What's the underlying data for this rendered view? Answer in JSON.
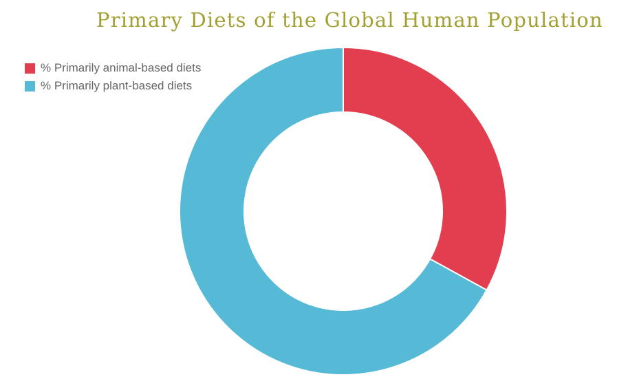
{
  "chart_data": {
    "type": "pie",
    "variant": "donut",
    "title": "Primary Diets of the Global Human Population",
    "series": [
      {
        "name": "% Primarily animal-based diets",
        "value": 33,
        "color": "#e23e4f"
      },
      {
        "name": "% Primarily plant-based diets",
        "value": 67,
        "color": "#56bad7"
      }
    ],
    "legend_position": "top-left",
    "start_angle": "top",
    "direction": "clockwise"
  }
}
